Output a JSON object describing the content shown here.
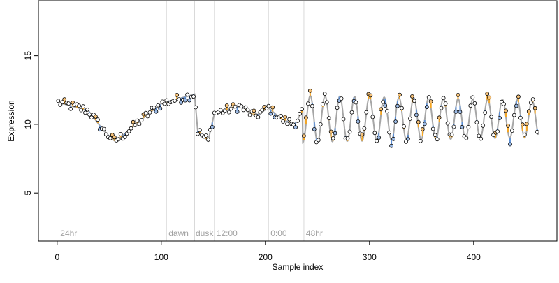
{
  "chart_data": {
    "type": "scatter",
    "title": "",
    "xlabel": "Sample index",
    "ylabel": "Expression",
    "xlim": [
      -18,
      480
    ],
    "ylim": [
      1.5,
      19.0
    ],
    "x_ticks": [
      0,
      100,
      200,
      300,
      400
    ],
    "y_ticks": [
      5,
      10,
      15
    ],
    "grid": false,
    "legend": "none",
    "annotations": [
      {
        "x": 3,
        "text": "24hr"
      },
      {
        "x": 107,
        "text": "dawn"
      },
      {
        "x": 133,
        "text": "dusk"
      },
      {
        "x": 153,
        "text": "12:00"
      },
      {
        "x": 205,
        "text": "0:00"
      },
      {
        "x": 239,
        "text": "48hr"
      }
    ],
    "vertical_lines": [
      105,
      132,
      151,
      203,
      237
    ],
    "colors": {
      "fit_line": "#a6a6a6",
      "residual_positive": "#f5a623",
      "residual_negative": "#5b8fd6",
      "point_fill_high": "#f6c27a",
      "point_fill_low": "#9dbbe6",
      "point_fill_neutral": "#ffffff",
      "vline": "#d9d9d9",
      "annotation_text": "#a0a0a0"
    },
    "series": [
      {
        "segments": [
          {
            "x_start": 1,
            "x_end": 30,
            "y_start": 11.6,
            "y_end": 11.0
          },
          {
            "x_start": 30,
            "x_end": 45,
            "y_start": 11.0,
            "y_end": 9.5
          },
          {
            "x_start": 45,
            "x_end": 55,
            "y_start": 9.5,
            "y_end": 8.8
          },
          {
            "x_start": 55,
            "x_end": 60,
            "y_start": 8.8,
            "y_end": 9.0
          },
          {
            "x_start": 60,
            "x_end": 85,
            "y_start": 9.0,
            "y_end": 10.6
          },
          {
            "x_start": 85,
            "x_end": 100,
            "y_start": 10.6,
            "y_end": 11.5
          },
          {
            "x_start": 100,
            "x_end": 132,
            "y_start": 11.5,
            "y_end": 12.2
          },
          {
            "x_start": 132,
            "x_end": 135,
            "y_start": 12.2,
            "y_end": 9.5
          },
          {
            "x_start": 135,
            "x_end": 145,
            "y_start": 9.5,
            "y_end": 8.8
          },
          {
            "x_start": 145,
            "x_end": 151,
            "y_start": 8.8,
            "y_end": 10.8
          },
          {
            "x_start": 151,
            "x_end": 175,
            "y_start": 10.8,
            "y_end": 11.3
          },
          {
            "x_start": 175,
            "x_end": 190,
            "y_start": 11.3,
            "y_end": 10.6
          },
          {
            "x_start": 190,
            "x_end": 203,
            "y_start": 10.6,
            "y_end": 11.2
          },
          {
            "x_start": 203,
            "x_end": 215,
            "y_start": 11.2,
            "y_end": 10.4
          },
          {
            "x_start": 215,
            "x_end": 228,
            "y_start": 10.4,
            "y_end": 10.0
          },
          {
            "x_start": 228,
            "x_end": 236,
            "y_start": 10.0,
            "y_end": 11.0
          }
        ],
        "oscillation": {
          "x_start": 236,
          "x_end": 462,
          "center": 10.4,
          "amplitude_start": 1.7,
          "amplitude_end": 1.35,
          "period": 14.2
        }
      }
    ]
  }
}
